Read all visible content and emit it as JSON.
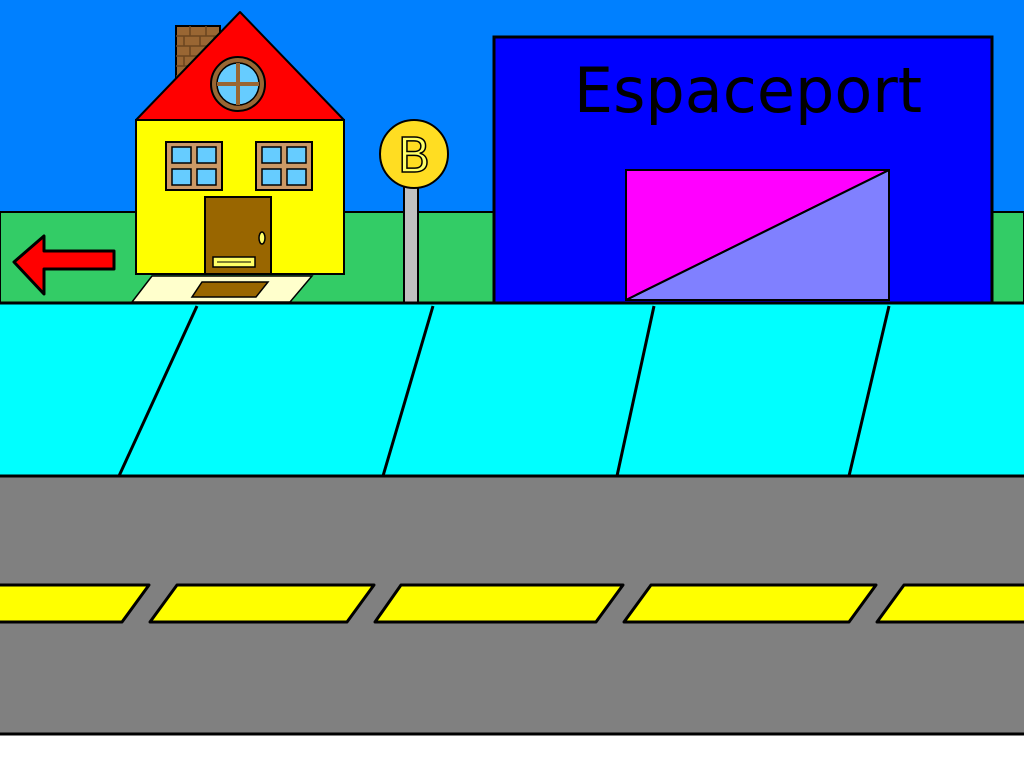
{
  "scene": {
    "building_sign": "Espaceport",
    "bus_stop_letter": "B",
    "back_arrow_icon": "left-arrow-icon"
  },
  "colors": {
    "sky": "#0080ff",
    "grass": "#33cc66",
    "house_wall": "#ffff00",
    "house_roof": "#ff0000",
    "door": "#996600",
    "chimney": "#996633",
    "window_glass": "#66ccff",
    "spaceport_wall": "#0000ff",
    "hangar_left": "#ff00ff",
    "hangar_right": "#8080ff",
    "sidewalk": "#00ffff",
    "road": "#808080",
    "road_stripes": "#ffff00",
    "bus_sign": "#ffdd22",
    "arrow": "#ff0000"
  }
}
